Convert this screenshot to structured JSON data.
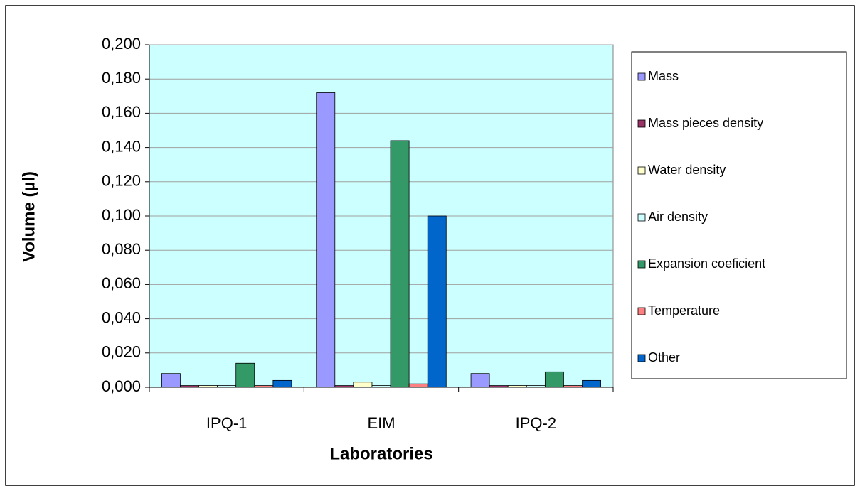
{
  "chart_data": {
    "type": "bar",
    "xlabel": "Laboratories",
    "ylabel": "Volume (µl)",
    "categories": [
      "IPQ-1",
      "EIM",
      "IPQ-2"
    ],
    "series": [
      {
        "name": "Mass",
        "color": "#9999ff",
        "values": [
          0.008,
          0.172,
          0.008
        ]
      },
      {
        "name": "Mass pieces density",
        "color": "#993366",
        "values": [
          0.001,
          0.001,
          0.001
        ]
      },
      {
        "name": "Water density",
        "color": "#ffffcc",
        "values": [
          0.001,
          0.003,
          0.001
        ]
      },
      {
        "name": "Air density",
        "color": "#ccffff",
        "values": [
          0.001,
          0.001,
          0.001
        ]
      },
      {
        "name": "Expansion coeficient",
        "color": "#339966",
        "values": [
          0.014,
          0.144,
          0.009
        ]
      },
      {
        "name": "Temperature",
        "color": "#ff8080",
        "values": [
          0.001,
          0.002,
          0.001
        ]
      },
      {
        "name": "Other",
        "color": "#0066cc",
        "values": [
          0.004,
          0.1,
          0.004
        ]
      }
    ],
    "ylim": [
      0,
      0.2
    ],
    "yticks": [
      {
        "value": 0,
        "label": "0,000"
      },
      {
        "value": 0.02,
        "label": "0,020"
      },
      {
        "value": 0.04,
        "label": "0,040"
      },
      {
        "value": 0.06,
        "label": "0,060"
      },
      {
        "value": 0.08,
        "label": "0,080"
      },
      {
        "value": 0.1,
        "label": "0,100"
      },
      {
        "value": 0.12,
        "label": "0,120"
      },
      {
        "value": 0.14,
        "label": "0,140"
      },
      {
        "value": 0.16,
        "label": "0,160"
      },
      {
        "value": 0.18,
        "label": "0,180"
      },
      {
        "value": 0.2,
        "label": "0,200"
      }
    ],
    "grid": true,
    "legend": "right"
  }
}
